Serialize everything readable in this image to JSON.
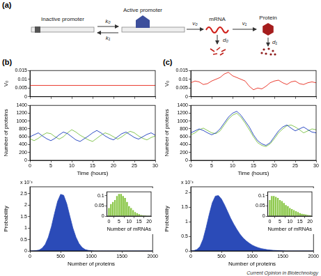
{
  "figure": {
    "panel_labels": [
      "(a)",
      "(b)",
      "(c)"
    ],
    "source": "Current Opinion in Biotechnology"
  },
  "diagram": {
    "inactive": "Inactive promoter",
    "active": "Active promoter",
    "mrna": "mRNA",
    "protein": "Protein",
    "k0": "k₀",
    "k1": "k₁",
    "v0": "v₀",
    "v1": "v₁",
    "d0": "d₀",
    "d1": "d₁"
  },
  "chart_data": [
    {
      "type": "line",
      "ylabel": "V₀",
      "x": [
        0,
        30
      ],
      "values": [
        0.0065,
        0.0065
      ],
      "color": "#e8291c",
      "xlim": [
        0,
        30
      ],
      "xticks": [
        0,
        5,
        10,
        15,
        20,
        25,
        30
      ],
      "ylim": [
        0,
        0.015
      ],
      "yticks": [
        0,
        0.005,
        0.01,
        0.015
      ],
      "grid": false,
      "tick_labels": "y"
    },
    {
      "type": "line",
      "xlabel": "Time (hours)",
      "ylabel": "Number of proteins",
      "x": [
        0,
        1,
        2,
        3,
        4,
        5,
        6,
        7,
        8,
        9,
        10,
        11,
        12,
        13,
        14,
        15,
        16,
        17,
        18,
        19,
        20,
        21,
        22,
        23,
        24,
        25,
        26,
        27,
        28,
        29,
        30
      ],
      "series": [
        {
          "color": "#1a3bbd",
          "values": [
            600,
            650,
            700,
            620,
            550,
            500,
            560,
            650,
            720,
            680,
            600,
            520,
            480,
            550,
            620,
            700,
            760,
            700,
            620,
            560,
            520,
            600,
            680,
            720,
            650,
            580,
            540,
            600,
            660,
            700,
            640
          ]
        },
        {
          "color": "#79c143",
          "values": [
            550,
            500,
            560,
            640,
            700,
            680,
            600,
            540,
            600,
            700,
            780,
            720,
            640,
            580,
            520,
            480,
            560,
            640,
            700,
            660,
            600,
            540,
            600,
            680,
            740,
            700,
            620,
            560,
            520,
            580,
            620
          ]
        }
      ],
      "xlim": [
        0,
        30
      ],
      "xticks": [
        0,
        5,
        10,
        15,
        20,
        25,
        30
      ],
      "ylim": [
        0,
        1400
      ],
      "yticks": [
        0,
        200,
        400,
        600,
        800,
        1000,
        1200,
        1400
      ],
      "grid": false
    },
    {
      "type": "area",
      "xlabel": "Number of proteins",
      "ylabel": "Probability",
      "ylabel_exponent": "x 10⁻³",
      "x": [
        0,
        50,
        100,
        150,
        200,
        250,
        300,
        350,
        400,
        450,
        500,
        550,
        600,
        650,
        700,
        750,
        800,
        850,
        900,
        950,
        1000,
        1050,
        1100,
        1150,
        1200,
        1250,
        1300,
        1350,
        1400,
        1450,
        1500,
        1550,
        1600,
        1650,
        1700,
        1750,
        1800,
        1850,
        1900,
        1950,
        2000
      ],
      "values": [
        0,
        0.004,
        0.014,
        0.04,
        0.12,
        0.29,
        0.6,
        1.06,
        1.63,
        2.16,
        2.47,
        2.43,
        2.06,
        1.52,
        1.0,
        0.6,
        0.32,
        0.15,
        0.06,
        0.025,
        0.01,
        0,
        0,
        0,
        0,
        0,
        0,
        0,
        0,
        0,
        0,
        0,
        0,
        0,
        0,
        0,
        0,
        0,
        0,
        0,
        0
      ],
      "color": "#2b4bb8",
      "xlim": [
        0,
        2000
      ],
      "xticks": [
        0,
        500,
        1000,
        1500,
        2000
      ],
      "ylim": [
        0,
        2.8
      ],
      "yticks": [
        0,
        0.5,
        1,
        1.5,
        2,
        2.5
      ],
      "grid": false
    },
    {
      "type": "histogram",
      "xlabel": "Number of mRNAs",
      "bins": [
        -0.5,
        0.5,
        1.5,
        2.5,
        3.5,
        4.5,
        5.5,
        6.5,
        7.5,
        8.5,
        9.5,
        10.5,
        11.5,
        12.5,
        13.5,
        14.5,
        15.5,
        16.5,
        17.5,
        18.5,
        19.5,
        20.5
      ],
      "values": [
        0.04,
        0.06,
        0.07,
        0.08,
        0.1,
        0.11,
        0.11,
        0.1,
        0.09,
        0.07,
        0.05,
        0.04,
        0.03,
        0.02,
        0.015,
        0.01,
        0.006,
        0.004,
        0.002,
        0.001,
        0.001
      ],
      "color": "#8cc84b",
      "xlim": [
        -1,
        21
      ],
      "xticks": [
        0,
        5,
        10,
        15,
        20
      ],
      "ylim": [
        0,
        0.12
      ],
      "yticks": [
        0,
        0.05,
        0.1
      ],
      "grid": false
    },
    {
      "type": "line",
      "ylabel": "V₀",
      "x": [
        0,
        1,
        2,
        3,
        4,
        5,
        6,
        7,
        8,
        9,
        10,
        11,
        12,
        13,
        14,
        15,
        16,
        17,
        18,
        19,
        20,
        21,
        22,
        23,
        24,
        25,
        26,
        27,
        28,
        29,
        30
      ],
      "values": [
        0.008,
        0.009,
        0.0085,
        0.007,
        0.0075,
        0.009,
        0.01,
        0.011,
        0.013,
        0.014,
        0.012,
        0.011,
        0.01,
        0.009,
        0.006,
        0.004,
        0.005,
        0.0045,
        0.006,
        0.008,
        0.009,
        0.0095,
        0.008,
        0.007,
        0.0085,
        0.009,
        0.0075,
        0.007,
        0.008,
        0.0085,
        0.008
      ],
      "color": "#e8291c",
      "xlim": [
        0,
        30
      ],
      "xticks": [
        0,
        5,
        10,
        15,
        20,
        25,
        30
      ],
      "ylim": [
        0,
        0.015
      ],
      "yticks": [
        0,
        0.005,
        0.01,
        0.015
      ],
      "grid": false,
      "tick_labels": "y"
    },
    {
      "type": "line",
      "xlabel": "Time (hours)",
      "ylabel": "Number of proteins",
      "x": [
        0,
        1,
        2,
        3,
        4,
        5,
        6,
        7,
        8,
        9,
        10,
        11,
        12,
        13,
        14,
        15,
        16,
        17,
        18,
        19,
        20,
        21,
        22,
        23,
        24,
        25,
        26,
        27,
        28,
        29,
        30
      ],
      "series": [
        {
          "color": "#1a3bbd",
          "values": [
            700,
            750,
            800,
            760,
            700,
            650,
            700,
            800,
            950,
            1100,
            1200,
            1250,
            1150,
            1000,
            850,
            650,
            500,
            420,
            380,
            450,
            600,
            750,
            850,
            900,
            820,
            750,
            800,
            850,
            780,
            720,
            700
          ]
        },
        {
          "color": "#79c143",
          "values": [
            650,
            700,
            780,
            820,
            760,
            700,
            680,
            750,
            900,
            1050,
            1150,
            1200,
            1100,
            950,
            780,
            600,
            450,
            380,
            350,
            420,
            550,
            700,
            800,
            880,
            900,
            850,
            780,
            700,
            750,
            800,
            780
          ]
        }
      ],
      "xlim": [
        0,
        30
      ],
      "xticks": [
        0,
        5,
        10,
        15,
        20,
        25,
        30
      ],
      "ylim": [
        0,
        1400
      ],
      "yticks": [
        0,
        200,
        400,
        600,
        800,
        1000,
        1200,
        1400
      ],
      "grid": false
    },
    {
      "type": "area",
      "xlabel": "Number of proteins",
      "ylabel": "Probability",
      "ylabel_exponent": "x 10⁻³",
      "x": [
        0,
        50,
        100,
        150,
        200,
        250,
        300,
        350,
        400,
        450,
        500,
        550,
        600,
        650,
        700,
        750,
        800,
        850,
        900,
        950,
        1000,
        1050,
        1100,
        1150,
        1200,
        1250,
        1300,
        1350,
        1400,
        1450,
        1500,
        1550,
        1600,
        1650,
        1700,
        1750,
        1800,
        1850,
        1900,
        1950,
        2000
      ],
      "values": [
        0,
        0.01,
        0.05,
        0.15,
        0.4,
        0.8,
        1.25,
        1.65,
        1.88,
        1.9,
        1.78,
        1.58,
        1.35,
        1.12,
        0.92,
        0.74,
        0.58,
        0.45,
        0.35,
        0.27,
        0.2,
        0.15,
        0.11,
        0.08,
        0.06,
        0.04,
        0.03,
        0.02,
        0.015,
        0.01,
        0.005,
        0,
        0,
        0,
        0,
        0,
        0,
        0,
        0,
        0,
        0
      ],
      "color": "#2b4bb8",
      "xlim": [
        0,
        2000
      ],
      "xticks": [
        0,
        500,
        1000,
        1500,
        2000
      ],
      "ylim": [
        0,
        2.2
      ],
      "yticks": [
        0,
        0.5,
        1,
        1.5,
        2
      ],
      "grid": false
    },
    {
      "type": "histogram",
      "xlabel": "Number of mRNAs",
      "bins": [
        -0.5,
        0.5,
        1.5,
        2.5,
        3.5,
        4.5,
        5.5,
        6.5,
        7.5,
        8.5,
        9.5,
        10.5,
        11.5,
        12.5,
        13.5,
        14.5,
        15.5,
        16.5,
        17.5,
        18.5,
        19.5,
        20.5
      ],
      "values": [
        0.08,
        0.1,
        0.1,
        0.095,
        0.09,
        0.08,
        0.075,
        0.065,
        0.055,
        0.05,
        0.04,
        0.035,
        0.03,
        0.025,
        0.02,
        0.015,
        0.012,
        0.01,
        0.008,
        0.006,
        0.005
      ],
      "color": "#8cc84b",
      "xlim": [
        -1,
        21
      ],
      "xticks": [
        0,
        5,
        10,
        15,
        20
      ],
      "ylim": [
        0,
        0.12
      ],
      "yticks": [
        0,
        0.05,
        0.1
      ],
      "grid": false
    }
  ]
}
